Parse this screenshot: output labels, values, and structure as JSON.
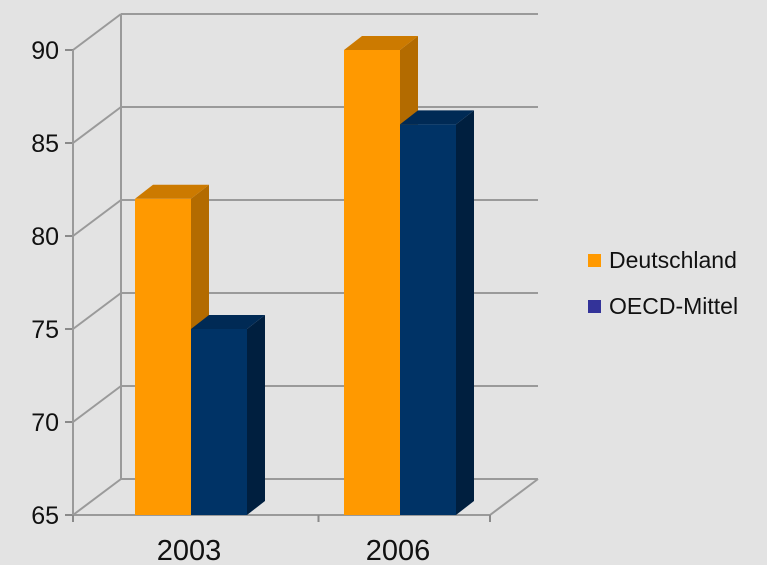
{
  "chart_data": {
    "type": "bar",
    "categories": [
      "2003",
      "2006"
    ],
    "series": [
      {
        "name": "Deutschland",
        "values": [
          82,
          90
        ],
        "color": "#ff9900",
        "side_color": "#b36b00",
        "top_color": "#cc7a00"
      },
      {
        "name": "OECD-Mittel",
        "values": [
          75,
          86
        ],
        "color": "#003366",
        "side_color": "#001f3f",
        "top_color": "#002a55",
        "legend_color": "#333399"
      }
    ],
    "ylim": [
      65,
      90
    ],
    "yticks": [
      "65",
      "70",
      "75",
      "80",
      "85",
      "90"
    ],
    "grid": true,
    "legend_position": "right",
    "view": "3d"
  }
}
